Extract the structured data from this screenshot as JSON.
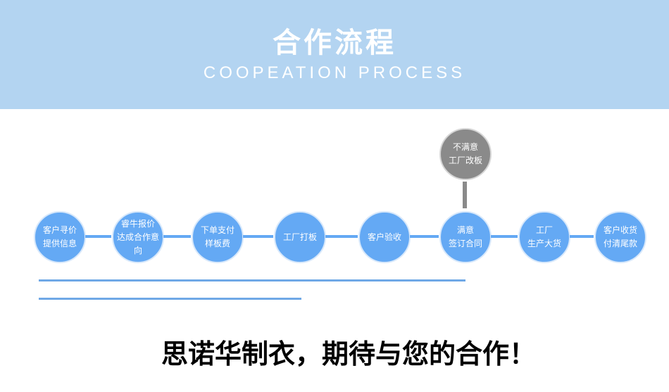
{
  "header": {
    "title": "合作流程",
    "subtitle": "COOPEATION PROCESS"
  },
  "steps": [
    {
      "line1": "客户寻价",
      "line2": "提供信息"
    },
    {
      "line1": "睿牛报价",
      "line2": "达成合作意向"
    },
    {
      "line1": "下单支付",
      "line2": "样板费"
    },
    {
      "line1": "工厂打板",
      "line2": ""
    },
    {
      "line1": "客户验收",
      "line2": ""
    },
    {
      "line1": "满意",
      "line2": "签订合同"
    },
    {
      "line1": "工厂",
      "line2": "生产大货"
    },
    {
      "line1": "客户收货",
      "line2": "付清尾款"
    }
  ],
  "branch": {
    "line1": "不满意",
    "line2": "工厂改板"
  },
  "colors": {
    "header": "#b3d4f1",
    "node": "#64a9f4",
    "branch": "#8a8a8a"
  },
  "footer": "思诺华制衣，期待与您的合作！"
}
